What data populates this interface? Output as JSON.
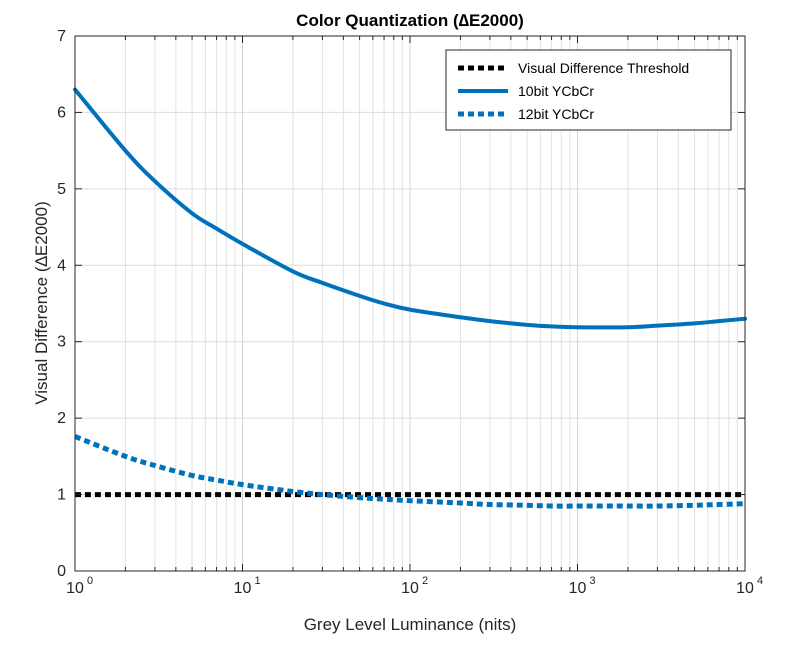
{
  "chart_data": {
    "type": "line",
    "title": "Color Quantization (∆E2000)",
    "xlabel": "Grey Level Luminance (nits)",
    "ylabel": "Visual Difference (∆E2000)",
    "x_scale": "log",
    "xlim": [
      1,
      10000
    ],
    "ylim": [
      0,
      7
    ],
    "grid": true,
    "legend_position": "top-right",
    "x_ticks": [
      {
        "base": "10",
        "exp": "0",
        "value": 1
      },
      {
        "base": "10",
        "exp": "1",
        "value": 10
      },
      {
        "base": "10",
        "exp": "2",
        "value": 100
      },
      {
        "base": "10",
        "exp": "3",
        "value": 1000
      },
      {
        "base": "10",
        "exp": "4",
        "value": 10000
      }
    ],
    "y_ticks": [
      "0",
      "1",
      "2",
      "3",
      "4",
      "5",
      "6",
      "7"
    ],
    "series": [
      {
        "name": "Visual Difference Threshold",
        "color": "#000000",
        "style": "dotted",
        "x": [
          1,
          10,
          100,
          1000,
          10000
        ],
        "y": [
          1.0,
          1.0,
          1.0,
          1.0,
          1.0
        ]
      },
      {
        "name": "10bit YCbCr",
        "color": "#0072BD",
        "style": "solid",
        "x": [
          1,
          2,
          3,
          5,
          7,
          10,
          20,
          30,
          50,
          70,
          100,
          200,
          300,
          500,
          700,
          1000,
          2000,
          3000,
          5000,
          7000,
          10000
        ],
        "y": [
          6.3,
          5.5,
          5.1,
          4.68,
          4.48,
          4.28,
          3.92,
          3.77,
          3.6,
          3.5,
          3.42,
          3.32,
          3.27,
          3.22,
          3.2,
          3.19,
          3.19,
          3.21,
          3.24,
          3.27,
          3.3
        ]
      },
      {
        "name": "12bit YCbCr",
        "color": "#0072BD",
        "style": "dotted",
        "x": [
          1,
          2,
          3,
          5,
          7,
          10,
          20,
          30,
          50,
          70,
          100,
          200,
          300,
          500,
          700,
          1000,
          2000,
          3000,
          5000,
          7000,
          10000
        ],
        "y": [
          1.76,
          1.5,
          1.38,
          1.25,
          1.19,
          1.13,
          1.04,
          1.0,
          0.96,
          0.94,
          0.92,
          0.89,
          0.87,
          0.86,
          0.85,
          0.85,
          0.85,
          0.85,
          0.86,
          0.87,
          0.88
        ]
      }
    ]
  }
}
